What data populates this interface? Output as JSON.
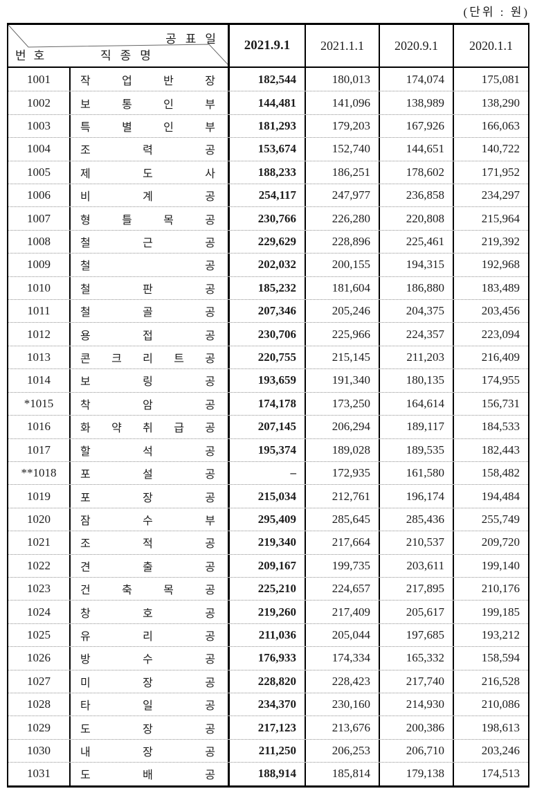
{
  "caption": "(단위 : 원)",
  "header": {
    "diagonal_top_label": "공표일",
    "diagonal_no_label": "번호",
    "diagonal_job_label": "직종명",
    "dates": [
      "2021.9.1",
      "2021.1.1",
      "2020.9.1",
      "2020.1.1"
    ]
  },
  "rows": [
    {
      "no": "1001",
      "job": "작업반장",
      "values": [
        "182,544",
        "180,013",
        "174,074",
        "175,081"
      ]
    },
    {
      "no": "1002",
      "job": "보통인부",
      "values": [
        "144,481",
        "141,096",
        "138,989",
        "138,290"
      ]
    },
    {
      "no": "1003",
      "job": "특별인부",
      "values": [
        "181,293",
        "179,203",
        "167,926",
        "166,063"
      ]
    },
    {
      "no": "1004",
      "job": "조력공",
      "values": [
        "153,674",
        "152,740",
        "144,651",
        "140,722"
      ]
    },
    {
      "no": "1005",
      "job": "제도사",
      "values": [
        "188,233",
        "186,251",
        "178,602",
        "171,952"
      ]
    },
    {
      "no": "1006",
      "job": "비계공",
      "values": [
        "254,117",
        "247,977",
        "236,858",
        "234,297"
      ]
    },
    {
      "no": "1007",
      "job": "형틀목공",
      "values": [
        "230,766",
        "226,280",
        "220,808",
        "215,964"
      ]
    },
    {
      "no": "1008",
      "job": "철근공",
      "values": [
        "229,629",
        "228,896",
        "225,461",
        "219,392"
      ]
    },
    {
      "no": "1009",
      "job": "철공",
      "values": [
        "202,032",
        "200,155",
        "194,315",
        "192,968"
      ]
    },
    {
      "no": "1010",
      "job": "철판공",
      "values": [
        "185,232",
        "181,604",
        "186,880",
        "183,489"
      ]
    },
    {
      "no": "1011",
      "job": "철골공",
      "values": [
        "207,346",
        "205,246",
        "204,375",
        "203,456"
      ]
    },
    {
      "no": "1012",
      "job": "용접공",
      "values": [
        "230,706",
        "225,966",
        "224,357",
        "223,094"
      ]
    },
    {
      "no": "1013",
      "job": "콘크리트공",
      "values": [
        "220,755",
        "215,145",
        "211,203",
        "216,409"
      ]
    },
    {
      "no": "1014",
      "job": "보링공",
      "values": [
        "193,659",
        "191,340",
        "180,135",
        "174,955"
      ]
    },
    {
      "no": "*1015",
      "job": "착암공",
      "values": [
        "174,178",
        "173,250",
        "164,614",
        "156,731"
      ]
    },
    {
      "no": "1016",
      "job": "화약취급공",
      "values": [
        "207,145",
        "206,294",
        "189,117",
        "184,533"
      ]
    },
    {
      "no": "1017",
      "job": "할석공",
      "values": [
        "195,374",
        "189,028",
        "189,535",
        "182,443"
      ]
    },
    {
      "no": "**1018",
      "job": "포설공",
      "values": [
        "–",
        "172,935",
        "161,580",
        "158,482"
      ]
    },
    {
      "no": "1019",
      "job": "포장공",
      "values": [
        "215,034",
        "212,761",
        "196,174",
        "194,484"
      ]
    },
    {
      "no": "1020",
      "job": "잠수부",
      "values": [
        "295,409",
        "285,645",
        "285,436",
        "255,749"
      ]
    },
    {
      "no": "1021",
      "job": "조적공",
      "values": [
        "219,340",
        "217,664",
        "210,537",
        "209,720"
      ]
    },
    {
      "no": "1022",
      "job": "견출공",
      "values": [
        "209,167",
        "199,735",
        "203,611",
        "199,140"
      ]
    },
    {
      "no": "1023",
      "job": "건축목공",
      "values": [
        "225,210",
        "224,657",
        "217,895",
        "210,176"
      ]
    },
    {
      "no": "1024",
      "job": "창호공",
      "values": [
        "219,260",
        "217,409",
        "205,617",
        "199,185"
      ]
    },
    {
      "no": "1025",
      "job": "유리공",
      "values": [
        "211,036",
        "205,044",
        "197,685",
        "193,212"
      ]
    },
    {
      "no": "1026",
      "job": "방수공",
      "values": [
        "176,933",
        "174,334",
        "165,332",
        "158,594"
      ]
    },
    {
      "no": "1027",
      "job": "미장공",
      "values": [
        "228,820",
        "228,423",
        "217,740",
        "216,528"
      ]
    },
    {
      "no": "1028",
      "job": "타일공",
      "values": [
        "234,370",
        "230,160",
        "214,930",
        "210,086"
      ]
    },
    {
      "no": "1029",
      "job": "도장공",
      "values": [
        "217,123",
        "213,676",
        "200,386",
        "198,613"
      ]
    },
    {
      "no": "1030",
      "job": "내장공",
      "values": [
        "211,250",
        "206,253",
        "206,710",
        "203,246"
      ]
    },
    {
      "no": "1031",
      "job": "도배공",
      "values": [
        "188,914",
        "185,814",
        "179,138",
        "174,513"
      ]
    }
  ]
}
